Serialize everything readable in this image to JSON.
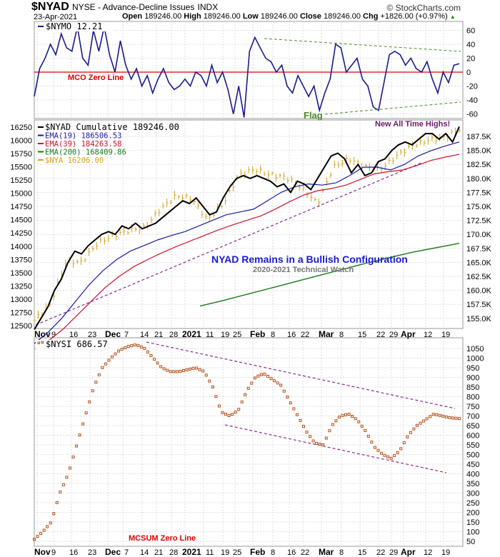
{
  "header": {
    "symbol": "$NYAD",
    "description": "NYSE - Advance-Decline Issues",
    "exchange": "INDX",
    "copyright": "© StockCharts.com",
    "date": "23-Apr-2021",
    "open_label": "Open",
    "open": "189246.00",
    "high_label": "High",
    "high": "189246.00",
    "low_label": "Low",
    "low": "189246.00",
    "close_label": "Close",
    "close": "189246.00",
    "chg_label": "Chg",
    "chg": "+1826.00 (+0.97%)"
  },
  "colors": {
    "nymo": "#1a1a8c",
    "nyad": "#000000",
    "ema19": "#1a1aa0",
    "ema39": "#d0102a",
    "ema200": "#1a7a1a",
    "nya": "#d4a017",
    "nysi": "#b5501a",
    "trend": "#8a2a8a",
    "flag": "#4a8a2a",
    "zero": "#e00000"
  },
  "chart_data": [
    {
      "type": "line",
      "title": "$NYMO 12.21",
      "legend": "$NYMO 12.21",
      "yticks": [
        60,
        40,
        20,
        0,
        -20,
        -40,
        -60
      ],
      "ylim": [
        -66,
        72
      ],
      "annotations": {
        "zero_line": "MCO Zero Line",
        "flag": "Flag"
      },
      "values": [
        -35,
        5,
        20,
        40,
        25,
        55,
        35,
        30,
        65,
        20,
        10,
        60,
        30,
        65,
        25,
        0,
        45,
        10,
        -10,
        5,
        -20,
        -5,
        -30,
        -10,
        5,
        -15,
        -25,
        -20,
        -10,
        -20,
        0,
        -5,
        -20,
        10,
        -15,
        0,
        -25,
        -60,
        -20,
        -65,
        30,
        50,
        35,
        20,
        15,
        0,
        10,
        -20,
        -30,
        -5,
        -20,
        -35,
        -20,
        -55,
        -30,
        -10,
        40,
        35,
        0,
        10,
        20,
        -10,
        -20,
        -50,
        -55,
        -15,
        25,
        30,
        25,
        10,
        20,
        5,
        0,
        15,
        -10,
        -30,
        0,
        -15,
        10,
        12.21
      ]
    },
    {
      "type": "line",
      "title": "$NYAD Cumulative",
      "legend": [
        {
          "name": "$NYAD Cumulative 189246.00"
        },
        {
          "name": "EMA(19) 186506.53"
        },
        {
          "name": "EMA(39) 184263.58"
        },
        {
          "name": "EMA(200) 168409.86"
        },
        {
          "name": "$NYA 16206.00"
        }
      ],
      "right_yticks": [
        "187.5K",
        "185.0K",
        "182.5K",
        "180.0K",
        "177.5K",
        "175.0K",
        "172.5K",
        "170.0K",
        "167.5K",
        "165.0K",
        "162.5K",
        "160.0K",
        "157.5K",
        "155.0K"
      ],
      "left_yticks": [
        "16250",
        "16000",
        "15750",
        "15500",
        "15250",
        "15000",
        "14750",
        "14500",
        "14250",
        "14000",
        "13750",
        "13500",
        "13250",
        "13000",
        "12750",
        "12500"
      ],
      "annotations": {
        "highs": "New All Time Highs!",
        "headline": "NYAD Remains in a Bullish Configuration",
        "watch": "2020-2021 Technical Watch"
      },
      "nyad_k": [
        153,
        155,
        157,
        160,
        162,
        165,
        167,
        166.5,
        168,
        169,
        170,
        170.5,
        170,
        171.5,
        171,
        172,
        171,
        171.5,
        172,
        173,
        174,
        175,
        176,
        175.5,
        176.5,
        175,
        173.5,
        174,
        176.5,
        178.5,
        180,
        180.5,
        180,
        180.5,
        180,
        179.5,
        178.5,
        179,
        177.5,
        179.5,
        179,
        178,
        180,
        182,
        184,
        184.5,
        183.5,
        181,
        182.5,
        180.5,
        181,
        183,
        183.5,
        185,
        186,
        186.5,
        186,
        187,
        188,
        188,
        187,
        188,
        186.5,
        189.246
      ],
      "ema19_k": [
        150.5,
        152.5,
        155,
        158,
        161,
        163.5,
        165.5,
        167,
        168,
        169,
        169.8,
        170.5,
        171.5,
        172.5,
        173.5,
        174,
        174.5,
        176,
        177.5,
        178.5,
        179,
        178.8,
        179.2,
        180.5,
        182,
        182,
        181.5,
        182.5,
        184,
        185,
        185.8,
        186.5
      ],
      "ema39_k": [
        149.5,
        151,
        153,
        155.5,
        158,
        160.5,
        162.5,
        164.2,
        165.5,
        166.7,
        167.8,
        168.8,
        169.8,
        170.8,
        171.7,
        172.5,
        173.3,
        174.5,
        175.8,
        177,
        177.8,
        178.2,
        178.8,
        179.8,
        180.8,
        181.2,
        181.5,
        182.3,
        183.2,
        183.8,
        184.3
      ],
      "ema200_k": [
        157.2,
        158.2,
        159.3,
        160.4,
        161.5,
        162.6,
        163.7,
        164.8,
        165.8,
        166.8,
        167.6,
        168.41
      ],
      "nya": [
        12600,
        12900,
        13700,
        13700,
        14050,
        14200,
        14300,
        14350,
        14700,
        14950,
        14900,
        14500,
        14800,
        15350,
        15450,
        15350,
        15300,
        15100,
        14800,
        15500,
        15650,
        15500,
        15450,
        15700,
        15900,
        16000,
        16050,
        16206
      ]
    },
    {
      "type": "scatter",
      "title": "$NYSI 686.57",
      "legend": "$NYSI 686.57",
      "yticks": [
        1050,
        1000,
        950,
        900,
        850,
        800,
        750,
        700,
        650,
        600,
        550,
        500,
        450,
        400,
        350,
        300,
        250,
        200,
        150,
        100,
        50
      ],
      "annotations": {
        "zero_line": "MCSUM Zero Line"
      },
      "values": [
        60,
        100,
        150,
        300,
        400,
        550,
        700,
        850,
        950,
        1000,
        1040,
        1060,
        1070,
        1050,
        1000,
        950,
        930,
        930,
        940,
        950,
        930,
        850,
        720,
        700,
        730,
        830,
        900,
        920,
        890,
        860,
        780,
        700,
        620,
        560,
        550,
        650,
        700,
        710,
        680,
        620,
        540,
        500,
        480,
        520,
        600,
        650,
        680,
        710,
        700,
        690,
        686.57
      ]
    }
  ],
  "xaxis": [
    "Nov",
    "9",
    "16",
    "23",
    "Dec",
    "7",
    "14",
    "21",
    "28",
    "2021",
    "11",
    "19",
    "25",
    "Feb",
    "8",
    "16",
    "22",
    "Mar",
    "8",
    "15",
    "22",
    "29",
    "Apr",
    "12",
    "19"
  ]
}
